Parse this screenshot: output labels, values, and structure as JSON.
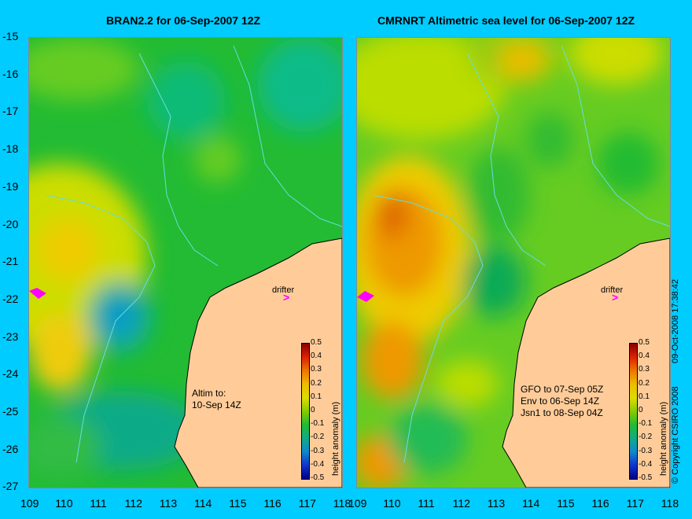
{
  "maps": [
    {
      "title": "BRAN2.2 for 06-Sep-2007 12Z",
      "note": "Altim to:\n10-Sep 14Z",
      "drifter_label": "drifter"
    },
    {
      "title": "CMRNRT Altimetric sea level  for 06-Sep-2007 12Z",
      "note": "GFO to 07-Sep 05Z\nEnv to 06-Sep 14Z\nJsn1 to 08-Sep 04Z",
      "drifter_label": "drifter"
    }
  ],
  "y_ticks": [
    "-15",
    "-16",
    "-17",
    "-18",
    "-19",
    "-20",
    "-21",
    "-22",
    "-23",
    "-24",
    "-25",
    "-26",
    "-27"
  ],
  "x_ticks": [
    "109",
    "110",
    "111",
    "112",
    "113",
    "114",
    "115",
    "116",
    "117",
    "118"
  ],
  "colorbar": {
    "labels": [
      "0.5",
      "0.4",
      "0.3",
      "0.2",
      "0.1",
      "0",
      "-0.1",
      "-0.2",
      "-0.3",
      "-0.4",
      "-0.5"
    ],
    "title": "height anomaly (m)"
  },
  "copyright": "© Copyright CSIRO 2008",
  "timestamp": "09-Oct-2008 17:38:42",
  "colors": {
    "background": "#00ccff",
    "land": "#ffcc99",
    "drifter": "#ff00ff"
  }
}
